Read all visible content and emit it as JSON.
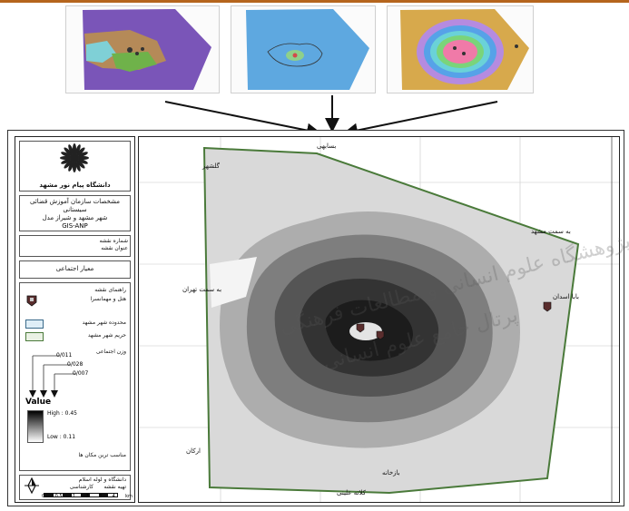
{
  "colors": {
    "top_line": "#b5651d",
    "boundary": "#4a7a3a",
    "gradient_high": "#000000",
    "gradient_low": "#ffffff"
  },
  "thumbnails": [
    {
      "name": "purple-brown-suitability-map"
    },
    {
      "name": "blue-buffer-map"
    },
    {
      "name": "rainbow-buffer-map"
    }
  ],
  "legend": {
    "university": "دانشگاه پیام نور مشهد",
    "title_lines": [
      "مشخصات سازمان آموزش قضائی سیستانی",
      "شهر مشهد و شیراز مدل",
      "GIS-ANP"
    ],
    "map_number_lines": [
      "شماره نقشه",
      "عنوان نقشه"
    ],
    "criterion": "معیار اجتماعی",
    "point_legend": [
      "راهنمای نقشه",
      "هتل و مهمانسرا"
    ],
    "boxes": [
      "محدوده شهر مشهد",
      "حریم شهر مشهد"
    ],
    "weights_header": "وزن اجتماعی",
    "weights": [
      "0/011",
      "0/028",
      "0/007"
    ],
    "value_title": "Value",
    "high": "High : 0.45",
    "low": "Low : 0.11",
    "bottom_note": "مناسب ترین مکان ها",
    "footer_lines": [
      "دانشگاه و لوله اسلام",
      "تهیه نقشه",
      "کارشناسی"
    ],
    "scale_labels": [
      "0",
      "0.5",
      "1",
      "2",
      "3",
      "4"
    ],
    "scale_unit": "km"
  },
  "map": {
    "labels": {
      "north": "بسابهی",
      "northwest": "گلشهر",
      "east": "به سمت مشهد",
      "east2": "بابا اسدان",
      "west": "به سمت تهران",
      "southwest": "ارکان",
      "south": "بازخانه",
      "south2": "کلاته علینی"
    },
    "watermark_lines": [
      "پژوهشگاه علوم انسانی و مطالعات فرهنگی",
      "پرتال جامع علوم انسانی"
    ]
  }
}
